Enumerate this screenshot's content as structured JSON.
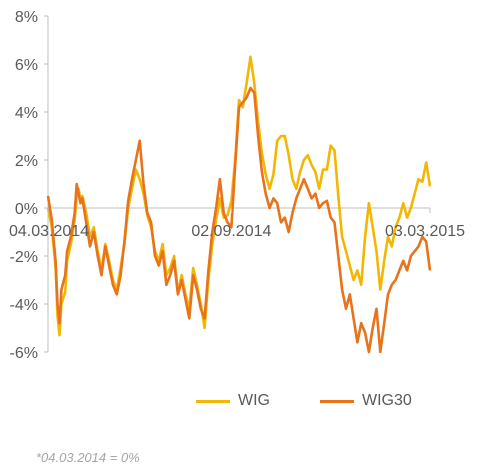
{
  "chart_data": {
    "type": "line",
    "ylim": [
      -6,
      8
    ],
    "yticks": [
      "8%",
      "6%",
      "4%",
      "2%",
      "0%",
      "-2%",
      "-4%",
      "-6%"
    ],
    "ytick_values": [
      8,
      6,
      4,
      2,
      0,
      -2,
      -4,
      -6
    ],
    "x_labels": [
      {
        "text": "04.03.2014",
        "t": 0
      },
      {
        "text": "02.09.2014",
        "t": 0.48
      },
      {
        "text": "03.03.2015",
        "t": 1
      }
    ],
    "grid": false,
    "legend_placement": "bottom",
    "series": [
      {
        "name": "WIG",
        "color": "#F2B705",
        "x": [
          0,
          0.01,
          0.02,
          0.025,
          0.03,
          0.035,
          0.045,
          0.05,
          0.06,
          0.07,
          0.075,
          0.08,
          0.085,
          0.09,
          0.1,
          0.11,
          0.12,
          0.13,
          0.14,
          0.15,
          0.16,
          0.17,
          0.18,
          0.19,
          0.2,
          0.21,
          0.22,
          0.23,
          0.24,
          0.25,
          0.26,
          0.27,
          0.28,
          0.29,
          0.3,
          0.31,
          0.32,
          0.33,
          0.34,
          0.35,
          0.36,
          0.37,
          0.38,
          0.39,
          0.4,
          0.41,
          0.42,
          0.43,
          0.44,
          0.45,
          0.46,
          0.47,
          0.48,
          0.49,
          0.5,
          0.51,
          0.52,
          0.53,
          0.54,
          0.55,
          0.56,
          0.57,
          0.58,
          0.59,
          0.6,
          0.61,
          0.62,
          0.63,
          0.64,
          0.65,
          0.66,
          0.67,
          0.68,
          0.69,
          0.7,
          0.71,
          0.72,
          0.73,
          0.74,
          0.75,
          0.76,
          0.77,
          0.78,
          0.79,
          0.8,
          0.81,
          0.82,
          0.83,
          0.84,
          0.85,
          0.86,
          0.87,
          0.88,
          0.89,
          0.9,
          0.91,
          0.92,
          0.93,
          0.94,
          0.95,
          0.96,
          0.97,
          0.98,
          0.99,
          1.0
        ],
        "y": [
          0,
          -0.8,
          -2.5,
          -4.5,
          -5.3,
          -4,
          -3.5,
          -2.2,
          -1.5,
          -0.5,
          0.5,
          0.8,
          0.3,
          0.5,
          -0.2,
          -1.2,
          -0.8,
          -1.8,
          -2.6,
          -1.5,
          -2.2,
          -3,
          -3.4,
          -2.5,
          -1.5,
          0,
          0.8,
          1.6,
          1.2,
          0.6,
          -0.3,
          -0.8,
          -1.8,
          -2.2,
          -1.5,
          -2.8,
          -2.5,
          -2,
          -3.5,
          -2.8,
          -3.6,
          -4.2,
          -2.5,
          -3.2,
          -4,
          -5,
          -3,
          -1.5,
          -0.5,
          0.4,
          -0.4,
          -0.3,
          0.3,
          2,
          4.5,
          4.2,
          5.2,
          6.3,
          5.2,
          3.6,
          2.3,
          1.4,
          0.8,
          1.4,
          2.8,
          3,
          3,
          2.2,
          1.2,
          0.8,
          1.5,
          2,
          2.2,
          1.8,
          1.5,
          0.8,
          1.6,
          1.6,
          2.6,
          2.4,
          0.5,
          -1.2,
          -1.8,
          -2.4,
          -3,
          -2.6,
          -3.2,
          -1.2,
          0.2,
          -0.8,
          -1.8,
          -3.4,
          -2.2,
          -1.2,
          -1.6,
          -0.8,
          -0.4,
          0.2,
          -0.4,
          0,
          0.6,
          1.2,
          1.1,
          1.9,
          0.9
        ]
      },
      {
        "name": "WIG30",
        "color": "#E8731D",
        "x": [
          0,
          0.01,
          0.02,
          0.025,
          0.03,
          0.035,
          0.045,
          0.05,
          0.06,
          0.07,
          0.075,
          0.08,
          0.085,
          0.09,
          0.1,
          0.11,
          0.12,
          0.13,
          0.14,
          0.15,
          0.16,
          0.17,
          0.18,
          0.19,
          0.2,
          0.21,
          0.22,
          0.23,
          0.24,
          0.25,
          0.26,
          0.27,
          0.28,
          0.29,
          0.3,
          0.31,
          0.32,
          0.33,
          0.34,
          0.35,
          0.36,
          0.37,
          0.38,
          0.39,
          0.4,
          0.41,
          0.42,
          0.43,
          0.44,
          0.45,
          0.46,
          0.47,
          0.48,
          0.49,
          0.5,
          0.51,
          0.52,
          0.53,
          0.54,
          0.55,
          0.56,
          0.57,
          0.58,
          0.59,
          0.6,
          0.61,
          0.62,
          0.63,
          0.64,
          0.65,
          0.66,
          0.67,
          0.68,
          0.69,
          0.7,
          0.71,
          0.72,
          0.73,
          0.74,
          0.75,
          0.76,
          0.77,
          0.78,
          0.79,
          0.8,
          0.81,
          0.82,
          0.83,
          0.84,
          0.85,
          0.86,
          0.87,
          0.88,
          0.89,
          0.9,
          0.91,
          0.92,
          0.93,
          0.94,
          0.95,
          0.96,
          0.97,
          0.98,
          0.99,
          1.0
        ],
        "y": [
          0.5,
          -0.5,
          -2.2,
          -4,
          -4.8,
          -3.4,
          -2.8,
          -1.8,
          -1.2,
          -0.2,
          1,
          0.6,
          0.2,
          0.4,
          -0.6,
          -1.6,
          -1,
          -2,
          -2.8,
          -1.6,
          -2.4,
          -3.2,
          -3.6,
          -2.8,
          -1.4,
          0.3,
          1.2,
          2,
          2.8,
          1,
          -0.2,
          -0.6,
          -2,
          -2.4,
          -1.8,
          -3.2,
          -2.8,
          -2.2,
          -3.6,
          -3,
          -3.8,
          -4.6,
          -2.8,
          -3.4,
          -4.2,
          -4.6,
          -2.6,
          -1,
          0,
          1.2,
          -0.2,
          -0.6,
          -0.8,
          1.8,
          4.2,
          4.4,
          4.6,
          5,
          4.8,
          3,
          1.5,
          0.6,
          0,
          0.4,
          0.2,
          -0.6,
          -0.4,
          -1,
          -0.2,
          0.4,
          0.8,
          1.2,
          0.8,
          0.4,
          0.6,
          0,
          0.2,
          0.3,
          -0.4,
          -0.6,
          -2,
          -3.4,
          -4.2,
          -3.6,
          -4.6,
          -5.6,
          -4.8,
          -5.2,
          -6,
          -5,
          -4.2,
          -6,
          -4.8,
          -3.6,
          -3.2,
          -3,
          -2.6,
          -2.2,
          -2.6,
          -2,
          -1.8,
          -1.6,
          -1.2,
          -1.4,
          -2.6
        ]
      }
    ]
  },
  "footnote": "*04.03.2014 = 0%"
}
